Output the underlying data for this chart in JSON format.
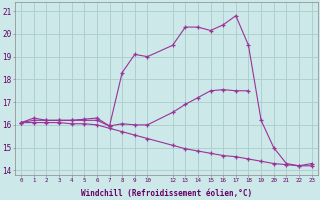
{
  "xlabel": "Windchill (Refroidissement éolien,°C)",
  "bg_color": "#cce8e8",
  "grid_color": "#aacccc",
  "line_color": "#993399",
  "xlim": [
    -0.5,
    23.5
  ],
  "ylim": [
    13.8,
    21.4
  ],
  "yticks": [
    14,
    15,
    16,
    17,
    18,
    19,
    20,
    21
  ],
  "xtick_positions": [
    0,
    1,
    2,
    3,
    4,
    5,
    6,
    7,
    8,
    9,
    10,
    12,
    13,
    14,
    15,
    16,
    17,
    18,
    19,
    20,
    21,
    22,
    23
  ],
  "xtick_labels": [
    "0",
    "1",
    "2",
    "3",
    "4",
    "5",
    "6",
    "7",
    "8",
    "9",
    "10",
    "12",
    "13",
    "14",
    "15",
    "16",
    "17",
    "18",
    "19",
    "20",
    "21",
    "22",
    "23"
  ],
  "curve1_x": [
    0,
    1,
    2,
    3,
    4,
    5,
    6,
    7,
    8,
    9,
    10,
    12,
    13,
    14,
    15,
    16,
    17,
    18
  ],
  "curve1_y": [
    16.1,
    16.3,
    16.2,
    16.2,
    16.2,
    16.2,
    16.2,
    15.95,
    16.05,
    16.0,
    16.0,
    16.55,
    16.9,
    17.2,
    17.5,
    17.55,
    17.5,
    17.5
  ],
  "curve2_x": [
    0,
    1,
    2,
    3,
    4,
    5,
    6,
    7,
    8,
    9,
    10,
    12,
    13,
    14,
    15,
    16,
    17,
    18,
    19,
    20,
    21,
    22,
    23
  ],
  "curve2_y": [
    16.1,
    16.2,
    16.2,
    16.2,
    16.2,
    16.25,
    16.3,
    15.95,
    18.3,
    19.1,
    19.0,
    19.5,
    20.3,
    20.3,
    20.15,
    20.4,
    20.8,
    19.5,
    16.2,
    15.0,
    14.3,
    14.2,
    14.3
  ],
  "curve3_x": [
    0,
    1,
    2,
    3,
    4,
    5,
    6,
    7,
    8,
    9,
    10,
    12,
    13,
    14,
    15,
    16,
    17,
    18,
    19,
    20,
    21,
    22,
    23
  ],
  "curve3_y": [
    16.1,
    16.1,
    16.1,
    16.1,
    16.05,
    16.05,
    16.0,
    15.85,
    15.7,
    15.55,
    15.4,
    15.1,
    14.95,
    14.85,
    14.75,
    14.65,
    14.6,
    14.5,
    14.4,
    14.3,
    14.25,
    14.2,
    14.2
  ]
}
